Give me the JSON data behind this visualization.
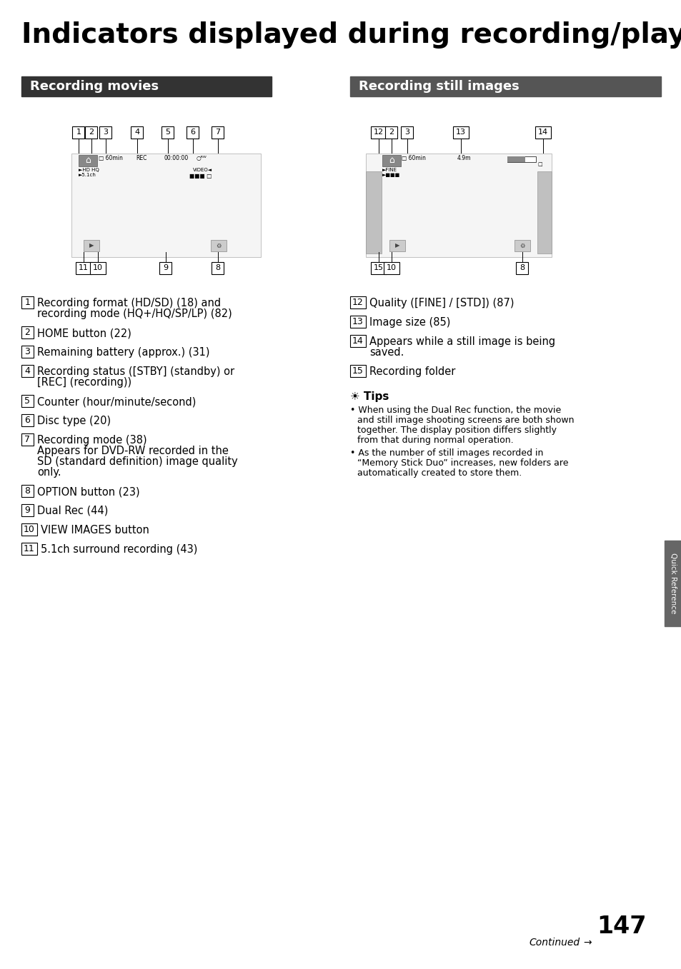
{
  "title": "Indicators displayed during recording/playback",
  "bg_color": "#ffffff",
  "title_color": "#000000",
  "title_fontsize": 28,
  "section1_header": "Recording movies",
  "section2_header": "Recording still images",
  "header_bg1": "#333333",
  "header_bg2": "#555555",
  "header_fg": "#ffffff",
  "header_fontsize": 13,
  "left_items": [
    [
      "1",
      "Recording format (HD/SD) (18) and\nrecording mode (HQ+/HQ/SP/LP) (82)"
    ],
    [
      "2",
      "HOME button (22)"
    ],
    [
      "3",
      "Remaining battery (approx.) (31)"
    ],
    [
      "4",
      "Recording status ([STBY] (standby) or\n[REC] (recording))"
    ],
    [
      "5",
      "Counter (hour/minute/second)"
    ],
    [
      "6",
      "Disc type (20)"
    ],
    [
      "7",
      "Recording mode (38)\nAppears for DVD-RW recorded in the\nSD (standard definition) image quality\nonly."
    ],
    [
      "8",
      "OPTION button (23)"
    ],
    [
      "9",
      "Dual Rec (44)"
    ],
    [
      "10",
      "VIEW IMAGES button"
    ],
    [
      "11",
      "5.1ch surround recording (43)"
    ]
  ],
  "right_items": [
    [
      "12",
      "Quality ([FINE] / [STD]) (87)"
    ],
    [
      "13",
      "Image size (85)"
    ],
    [
      "14",
      "Appears while a still image is being\nsaved."
    ],
    [
      "15",
      "Recording folder"
    ]
  ],
  "tips_title": "☀️ Tips",
  "tips_items": [
    "When using the Dual Rec function, the movie\nand still image shooting screens are both shown\ntogether. The display position differs slightly\nfrom that during normal operation.",
    "As the number of still images recorded in\n“Memory Stick Duo” increases, new folders are\nautomatically created to store them."
  ],
  "continued_text": "Continued",
  "page_number": "147",
  "tab_label": "Quick Reference",
  "tab_bg": "#666666",
  "tab_fg": "#ffffff"
}
